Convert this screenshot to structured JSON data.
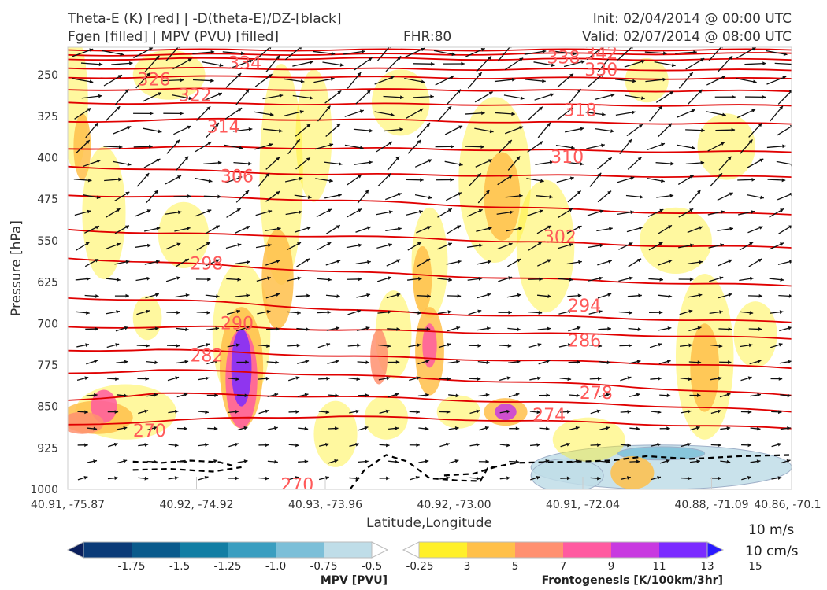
{
  "header": {
    "title_left_1": "Theta-E (K) [red] | -D(theta-E)/DZ-[black]",
    "title_left_2": "Fgen [filled] | MPV (PVU) [filled]",
    "fhr": "FHR:80",
    "init": "Init: 02/04/2014 @ 00:00 UTC",
    "valid": "Valid: 02/07/2014 @ 08:00 UTC"
  },
  "chart_data": {
    "type": "cross-section",
    "xlabel": "Latitude,Longitude",
    "ylabel": "Pressure [hPa]",
    "x_ticks": [
      "40.91, -75.87",
      "40.92, -74.92",
      "40.93, -73.96",
      "40.92, -73.00",
      "40.91, -72.04",
      "40.88, -71.09",
      "40.86, -70.1"
    ],
    "y_ticks": [
      250,
      325,
      400,
      475,
      550,
      625,
      700,
      775,
      850,
      925,
      1000
    ],
    "ylim": [
      1000,
      200
    ],
    "theta_e_contours": [
      {
        "label": "342",
        "levels": [
          205,
          205,
          205,
          205,
          205,
          205,
          205,
          205,
          205
        ]
      },
      {
        "label": "338",
        "levels": [
          214,
          214,
          213,
          213,
          213,
          212,
          212,
          212,
          211
        ]
      },
      {
        "label": "334",
        "levels": [
          222,
          221,
          221,
          220,
          221,
          222,
          222,
          222,
          223
        ]
      },
      {
        "label": "330",
        "levels": [
          238,
          238,
          239,
          239,
          240,
          240,
          240,
          241,
          242
        ]
      },
      {
        "label": "326",
        "levels": [
          255,
          254,
          253,
          254,
          255,
          256,
          256,
          257,
          257
        ]
      },
      {
        "label": "322",
        "levels": [
          277,
          276,
          276,
          277,
          277,
          278,
          279,
          279,
          280
        ]
      },
      {
        "label": "318",
        "levels": [
          300,
          302,
          302,
          303,
          303,
          304,
          305,
          305,
          306
        ]
      },
      {
        "label": "314",
        "levels": [
          335,
          332,
          330,
          331,
          333,
          336,
          337,
          338,
          339
        ]
      },
      {
        "label": "310",
        "levels": [
          384,
          381,
          381,
          383,
          384,
          386,
          388,
          389,
          390
        ]
      },
      {
        "label": "306",
        "levels": [
          416,
          421,
          427,
          430,
          431,
          432,
          433,
          434,
          435
        ]
      },
      {
        "label": "302",
        "levels": [
          468,
          470,
          473,
          477,
          484,
          490,
          497,
          500,
          503
        ]
      },
      {
        "label": "298",
        "levels": [
          530,
          537,
          540,
          542,
          546,
          552,
          557,
          560,
          563
        ]
      },
      {
        "label": "294",
        "levels": [
          582,
          589,
          598,
          606,
          613,
          618,
          624,
          628,
          632
        ]
      },
      {
        "label": "290",
        "levels": [
          654,
          657,
          664,
          675,
          682,
          686,
          690,
          694,
          698
        ]
      },
      {
        "label": "286",
        "levels": [
          706,
          707,
          706,
          712,
          714,
          718,
          720,
          723,
          728
        ]
      },
      {
        "label": "282",
        "levels": [
          749,
          747,
          753,
          759,
          763,
          767,
          770,
          775,
          781
        ]
      },
      {
        "label": "278",
        "levels": [
          790,
          784,
          788,
          793,
          800,
          806,
          812,
          822,
          830
        ]
      },
      {
        "label": "274",
        "levels": [
          839,
          826,
          830,
          832,
          837,
          842,
          846,
          852,
          860
        ]
      },
      {
        "label": "270",
        "levels": [
          883,
          877,
          870,
          868,
          872,
          876,
          880,
          885,
          890
        ]
      }
    ],
    "contour_labels": [
      {
        "text": "342",
        "x": 0.737,
        "p": 210
      },
      {
        "text": "338",
        "x": 0.685,
        "p": 218
      },
      {
        "text": "334",
        "x": 0.245,
        "p": 228
      },
      {
        "text": "330",
        "x": 0.737,
        "p": 240
      },
      {
        "text": "326",
        "x": 0.119,
        "p": 258
      },
      {
        "text": "322",
        "x": 0.176,
        "p": 286
      },
      {
        "text": "318",
        "x": 0.708,
        "p": 313
      },
      {
        "text": "314",
        "x": 0.215,
        "p": 343
      },
      {
        "text": "310",
        "x": 0.69,
        "p": 398
      },
      {
        "text": "306",
        "x": 0.234,
        "p": 433
      },
      {
        "text": "302",
        "x": 0.68,
        "p": 542
      },
      {
        "text": "298",
        "x": 0.192,
        "p": 591
      },
      {
        "text": "294",
        "x": 0.714,
        "p": 667
      },
      {
        "text": "290",
        "x": 0.234,
        "p": 699
      },
      {
        "text": "286",
        "x": 0.714,
        "p": 730
      },
      {
        "text": "282",
        "x": 0.192,
        "p": 757
      },
      {
        "text": "278",
        "x": 0.73,
        "p": 825
      },
      {
        "text": "274",
        "x": 0.665,
        "p": 865
      },
      {
        "text": "270",
        "x": 0.113,
        "p": 893
      },
      {
        "text": "270",
        "x": 0.317,
        "p": 991
      }
    ],
    "mpv_colorbar": {
      "title": "MPV [PVU]",
      "ticks": [
        "-1.75",
        "-1.5",
        "-1.25",
        "-1.0",
        "-0.75",
        "-0.5",
        "-0.25"
      ],
      "colors": [
        "#0b1f5c",
        "#0b3b78",
        "#0a5a8c",
        "#127ea4",
        "#3a9ec0",
        "#7cbfd8",
        "#bfdde8",
        "#ffffff"
      ],
      "extend": "both"
    },
    "fgen_colorbar": {
      "title": "Frontogenesis [K/100km/3hr]",
      "ticks": [
        "3",
        "5",
        "7",
        "9",
        "11",
        "13",
        "15"
      ],
      "colors": [
        "#ffffff",
        "#fff02a",
        "#ffc04a",
        "#ff9070",
        "#ff5aa0",
        "#c83ae0",
        "#7b2bff",
        "#2a1aff"
      ],
      "extend": "both"
    },
    "fgen_regions": [
      {
        "x": 0.01,
        "p": 300,
        "rx": 0.018,
        "rp": 120,
        "level": 3
      },
      {
        "x": 0.02,
        "p": 380,
        "rx": 0.012,
        "rp": 60,
        "level": 5
      },
      {
        "x": 0.05,
        "p": 500,
        "rx": 0.03,
        "rp": 120,
        "level": 3
      },
      {
        "x": 0.14,
        "p": 250,
        "rx": 0.05,
        "rp": 45,
        "level": 3
      },
      {
        "x": 0.16,
        "p": 540,
        "rx": 0.035,
        "rp": 60,
        "level": 3
      },
      {
        "x": 0.11,
        "p": 690,
        "rx": 0.02,
        "rp": 40,
        "level": 3
      },
      {
        "x": 0.08,
        "p": 860,
        "rx": 0.07,
        "rp": 50,
        "level": 3
      },
      {
        "x": 0.04,
        "p": 870,
        "rx": 0.05,
        "rp": 30,
        "level": 5
      },
      {
        "x": 0.05,
        "p": 850,
        "rx": 0.018,
        "rp": 30,
        "level": 9
      },
      {
        "x": 0.02,
        "p": 880,
        "rx": 0.03,
        "rp": 20,
        "level": 7
      },
      {
        "x": 0.24,
        "p": 720,
        "rx": 0.04,
        "rp": 130,
        "level": 3
      },
      {
        "x": 0.24,
        "p": 780,
        "rx": 0.03,
        "rp": 110,
        "level": 5
      },
      {
        "x": 0.24,
        "p": 800,
        "rx": 0.022,
        "rp": 90,
        "level": 9
      },
      {
        "x": 0.24,
        "p": 780,
        "rx": 0.014,
        "rp": 70,
        "level": 13
      },
      {
        "x": 0.295,
        "p": 430,
        "rx": 0.03,
        "rp": 200,
        "level": 3
      },
      {
        "x": 0.29,
        "p": 620,
        "rx": 0.022,
        "rp": 90,
        "level": 5
      },
      {
        "x": 0.34,
        "p": 360,
        "rx": 0.025,
        "rp": 120,
        "level": 3
      },
      {
        "x": 0.37,
        "p": 900,
        "rx": 0.03,
        "rp": 60,
        "level": 3
      },
      {
        "x": 0.44,
        "p": 870,
        "rx": 0.03,
        "rp": 40,
        "level": 3
      },
      {
        "x": 0.46,
        "p": 300,
        "rx": 0.04,
        "rp": 60,
        "level": 3
      },
      {
        "x": 0.5,
        "p": 590,
        "rx": 0.025,
        "rp": 100,
        "level": 3
      },
      {
        "x": 0.49,
        "p": 620,
        "rx": 0.013,
        "rp": 60,
        "level": 5
      },
      {
        "x": 0.45,
        "p": 720,
        "rx": 0.025,
        "rp": 80,
        "level": 3
      },
      {
        "x": 0.43,
        "p": 760,
        "rx": 0.012,
        "rp": 50,
        "level": 7
      },
      {
        "x": 0.5,
        "p": 750,
        "rx": 0.02,
        "rp": 80,
        "level": 5
      },
      {
        "x": 0.5,
        "p": 740,
        "rx": 0.01,
        "rp": 40,
        "level": 9
      },
      {
        "x": 0.54,
        "p": 860,
        "rx": 0.03,
        "rp": 30,
        "level": 3
      },
      {
        "x": 0.59,
        "p": 440,
        "rx": 0.05,
        "rp": 150,
        "level": 3
      },
      {
        "x": 0.6,
        "p": 470,
        "rx": 0.025,
        "rp": 80,
        "level": 5
      },
      {
        "x": 0.66,
        "p": 560,
        "rx": 0.04,
        "rp": 120,
        "level": 3
      },
      {
        "x": 0.605,
        "p": 860,
        "rx": 0.03,
        "rp": 25,
        "level": 5
      },
      {
        "x": 0.605,
        "p": 860,
        "rx": 0.015,
        "rp": 15,
        "level": 11
      },
      {
        "x": 0.72,
        "p": 910,
        "rx": 0.05,
        "rp": 40,
        "level": 3
      },
      {
        "x": 0.8,
        "p": 260,
        "rx": 0.03,
        "rp": 40,
        "level": 3
      },
      {
        "x": 0.84,
        "p": 550,
        "rx": 0.05,
        "rp": 60,
        "level": 3
      },
      {
        "x": 0.88,
        "p": 760,
        "rx": 0.04,
        "rp": 150,
        "level": 3
      },
      {
        "x": 0.88,
        "p": 780,
        "rx": 0.02,
        "rp": 80,
        "level": 5
      },
      {
        "x": 0.91,
        "p": 380,
        "rx": 0.04,
        "rp": 60,
        "level": 3
      },
      {
        "x": 0.95,
        "p": 720,
        "rx": 0.03,
        "rp": 60,
        "level": 3
      },
      {
        "x": 0.78,
        "p": 970,
        "rx": 0.03,
        "rp": 30,
        "level": 5
      }
    ],
    "mpv_negative_regions": [
      {
        "x": 0.82,
        "p": 960,
        "rx": 0.18,
        "rp": 40,
        "level": -0.25
      },
      {
        "x": 0.82,
        "p": 935,
        "rx": 0.06,
        "rp": 12,
        "level": -0.5
      },
      {
        "x": 0.69,
        "p": 975,
        "rx": 0.05,
        "rp": 30,
        "level": -0.25
      }
    ],
    "stability_contours": [
      {
        "points": [
          [
            0.09,
            950
          ],
          [
            0.13,
            952
          ],
          [
            0.17,
            948
          ],
          [
            0.21,
            951
          ],
          [
            0.23,
            958
          ]
        ]
      },
      {
        "points": [
          [
            0.09,
            965
          ],
          [
            0.14,
            963
          ],
          [
            0.2,
            968
          ],
          [
            0.24,
            960
          ]
        ]
      },
      {
        "points": [
          [
            0.39,
            1000
          ],
          [
            0.41,
            965
          ],
          [
            0.44,
            938
          ],
          [
            0.47,
            950
          ],
          [
            0.5,
            980
          ],
          [
            0.54,
            984
          ],
          [
            0.57,
            985
          ],
          [
            0.58,
            962
          ],
          [
            0.62,
            952
          ],
          [
            0.7,
            950
          ],
          [
            0.75,
            948
          ],
          [
            0.8,
            940
          ],
          [
            0.86,
            945
          ],
          [
            0.93,
            940
          ],
          [
            1.0,
            938
          ]
        ]
      },
      {
        "points": [
          [
            0.52,
            975
          ],
          [
            0.56,
            972
          ],
          [
            0.59,
            960
          ]
        ]
      }
    ],
    "wind_reference": {
      "label_1": "10 m/s",
      "label_2": "10 cm/s"
    }
  }
}
